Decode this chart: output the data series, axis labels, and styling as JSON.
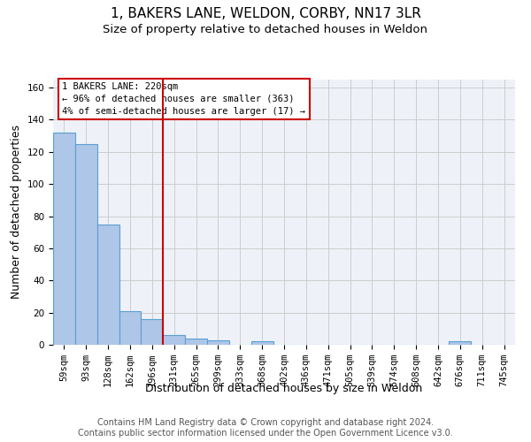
{
  "title": "1, BAKERS LANE, WELDON, CORBY, NN17 3LR",
  "subtitle": "Size of property relative to detached houses in Weldon",
  "xlabel": "Distribution of detached houses by size in Weldon",
  "ylabel": "Number of detached properties",
  "categories": [
    "59sqm",
    "93sqm",
    "128sqm",
    "162sqm",
    "196sqm",
    "231sqm",
    "265sqm",
    "299sqm",
    "333sqm",
    "368sqm",
    "402sqm",
    "436sqm",
    "471sqm",
    "505sqm",
    "539sqm",
    "574sqm",
    "608sqm",
    "642sqm",
    "676sqm",
    "711sqm",
    "745sqm"
  ],
  "values": [
    132,
    125,
    75,
    21,
    16,
    6,
    4,
    3,
    0,
    2,
    0,
    0,
    0,
    0,
    0,
    0,
    0,
    0,
    2,
    0,
    0
  ],
  "bar_color": "#aec6e8",
  "bar_edge_color": "#5a9fd4",
  "vline_x_index": 4.5,
  "annotation_text": "1 BAKERS LANE: 220sqm\n← 96% of detached houses are smaller (363)\n4% of semi-detached houses are larger (17) →",
  "vline_color": "#cc0000",
  "annotation_box_edge": "#cc0000",
  "ylim": [
    0,
    165
  ],
  "yticks": [
    0,
    20,
    40,
    60,
    80,
    100,
    120,
    140,
    160
  ],
  "grid_color": "#cccccc",
  "bg_color": "#eef2f8",
  "footer": "Contains HM Land Registry data © Crown copyright and database right 2024.\nContains public sector information licensed under the Open Government Licence v3.0.",
  "title_fontsize": 11,
  "subtitle_fontsize": 9.5,
  "xlabel_fontsize": 9,
  "ylabel_fontsize": 9,
  "tick_fontsize": 7.5,
  "annotation_fontsize": 7.5,
  "footer_fontsize": 7
}
